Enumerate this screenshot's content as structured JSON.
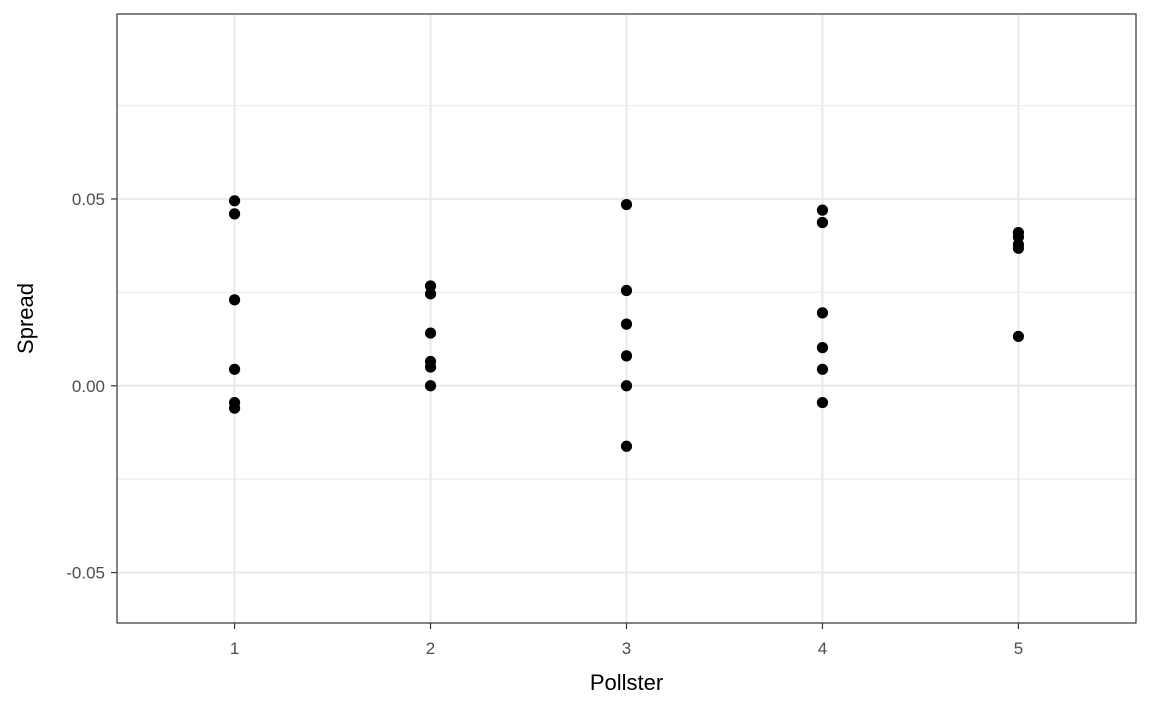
{
  "chart_data": {
    "type": "scatter",
    "xlabel": "Pollster",
    "ylabel": "Spread",
    "xlim": [
      0.4,
      5.6
    ],
    "ylim": [
      -0.0635,
      0.0995
    ],
    "x_ticks": [
      1,
      2,
      3,
      4,
      5
    ],
    "x_tick_labels": [
      "1",
      "2",
      "3",
      "4",
      "5"
    ],
    "y_ticks": [
      -0.05,
      0.0,
      0.05
    ],
    "y_tick_labels": [
      "-0.05",
      "0.00",
      "0.05"
    ],
    "y_minor_ticks": [
      -0.025,
      0.025,
      0.075
    ],
    "grid": true,
    "legend": "none",
    "point_color": "#000000",
    "points": [
      {
        "x": 1,
        "y": 0.0495
      },
      {
        "x": 1,
        "y": 0.046
      },
      {
        "x": 1,
        "y": 0.023
      },
      {
        "x": 1,
        "y": 0.0044
      },
      {
        "x": 1,
        "y": -0.0045
      },
      {
        "x": 1,
        "y": -0.006
      },
      {
        "x": 2,
        "y": 0.0267
      },
      {
        "x": 2,
        "y": 0.0246
      },
      {
        "x": 2,
        "y": 0.0141
      },
      {
        "x": 2,
        "y": 0.0065
      },
      {
        "x": 2,
        "y": 0.005
      },
      {
        "x": 2,
        "y": 0.0
      },
      {
        "x": 3,
        "y": 0.0485
      },
      {
        "x": 3,
        "y": 0.0255
      },
      {
        "x": 3,
        "y": 0.0165
      },
      {
        "x": 3,
        "y": 0.008
      },
      {
        "x": 3,
        "y": 0.0
      },
      {
        "x": 3,
        "y": -0.0162
      },
      {
        "x": 4,
        "y": 0.047
      },
      {
        "x": 4,
        "y": 0.0437
      },
      {
        "x": 4,
        "y": 0.0195
      },
      {
        "x": 4,
        "y": 0.0102
      },
      {
        "x": 4,
        "y": 0.0044
      },
      {
        "x": 4,
        "y": -0.0045
      },
      {
        "x": 5,
        "y": 0.041
      },
      {
        "x": 5,
        "y": 0.0398
      },
      {
        "x": 5,
        "y": 0.0378
      },
      {
        "x": 5,
        "y": 0.0368
      },
      {
        "x": 5,
        "y": 0.0132
      }
    ]
  }
}
